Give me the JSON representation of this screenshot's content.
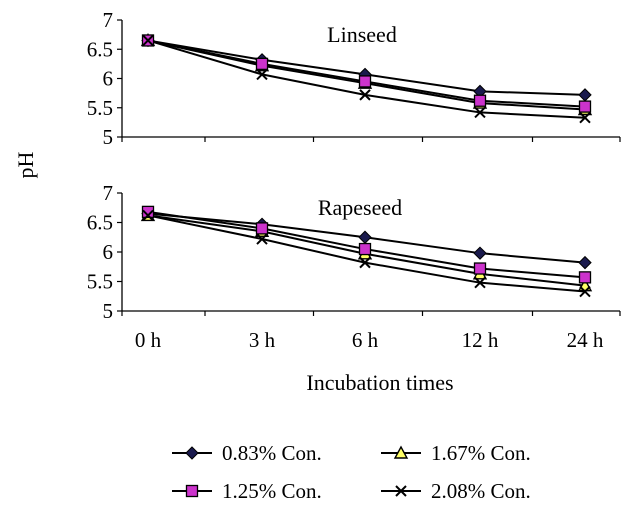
{
  "chart_data": {
    "type": "line",
    "ylabel": "pH",
    "xlabel": "Incubation times",
    "categories": [
      "0 h",
      "3 h",
      "6 h",
      "12 h",
      "24 h"
    ],
    "ylim": [
      5,
      7
    ],
    "yticks": [
      5,
      5.5,
      6,
      6.5,
      7
    ],
    "ytick_labels": [
      "5",
      "5.5",
      "6",
      "6.5",
      "7"
    ],
    "legend_position": "bottom",
    "legend": [
      "0.83% Con.",
      "1.67% Con.",
      "1.25% Con.",
      "2.08% Con."
    ],
    "series_styles": [
      {
        "marker": "diamond",
        "fill": "#1a1a4d"
      },
      {
        "marker": "triangle",
        "fill": "#ffff66"
      },
      {
        "marker": "square",
        "fill": "#cc33cc"
      },
      {
        "marker": "x",
        "fill": "#000000"
      }
    ],
    "panels": [
      {
        "title": "Linseed",
        "series": [
          {
            "name": "0.83% Con.",
            "values": [
              6.65,
              6.32,
              6.07,
              5.78,
              5.72
            ]
          },
          {
            "name": "1.67% Con.",
            "values": [
              6.65,
              6.22,
              5.92,
              5.58,
              5.47
            ]
          },
          {
            "name": "1.25% Con.",
            "values": [
              6.65,
              6.25,
              5.95,
              5.62,
              5.52
            ]
          },
          {
            "name": "2.08% Con.",
            "values": [
              6.65,
              6.07,
              5.72,
              5.42,
              5.33
            ]
          }
        ]
      },
      {
        "title": "Rapeseed",
        "series": [
          {
            "name": "0.83% Con.",
            "values": [
              6.65,
              6.47,
              6.25,
              5.98,
              5.82
            ]
          },
          {
            "name": "1.67% Con.",
            "values": [
              6.62,
              6.35,
              5.97,
              5.63,
              5.43
            ]
          },
          {
            "name": "1.25% Con.",
            "values": [
              6.68,
              6.4,
              6.05,
              5.72,
              5.57
            ]
          },
          {
            "name": "2.08% Con.",
            "values": [
              6.62,
              6.22,
              5.82,
              5.48,
              5.33
            ]
          }
        ]
      }
    ]
  }
}
